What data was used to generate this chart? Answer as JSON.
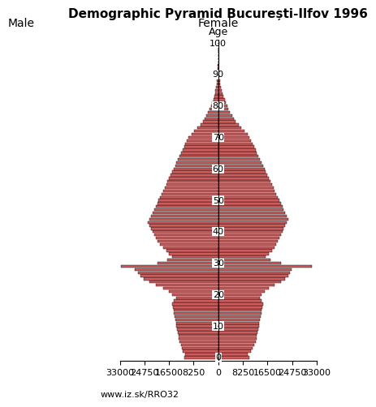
{
  "title": "Demographic Pyramid București-Ilfov 1996",
  "male_label": "Male",
  "female_label": "Female",
  "age_label": "Age",
  "xlim": 33000,
  "website": "www.iz.sk/RRO32",
  "bar_color": "#cd5c5c",
  "bar_edge_color": "#000000",
  "background_color": "#ffffff",
  "title_fontsize": 11,
  "label_fontsize": 10,
  "tick_fontsize": 8,
  "ages": [
    0,
    1,
    2,
    3,
    4,
    5,
    6,
    7,
    8,
    9,
    10,
    11,
    12,
    13,
    14,
    15,
    16,
    17,
    18,
    19,
    20,
    21,
    22,
    23,
    24,
    25,
    26,
    27,
    28,
    29,
    30,
    31,
    32,
    33,
    34,
    35,
    36,
    37,
    38,
    39,
    40,
    41,
    42,
    43,
    44,
    45,
    46,
    47,
    48,
    49,
    50,
    51,
    52,
    53,
    54,
    55,
    56,
    57,
    58,
    59,
    60,
    61,
    62,
    63,
    64,
    65,
    66,
    67,
    68,
    69,
    70,
    71,
    72,
    73,
    74,
    75,
    76,
    77,
    78,
    79,
    80,
    81,
    82,
    83,
    84,
    85,
    86,
    87,
    88,
    89,
    90,
    91,
    92,
    93,
    94,
    95,
    96,
    97,
    98,
    99
  ],
  "male": [
    11500,
    11000,
    11800,
    12200,
    12500,
    13000,
    13200,
    13400,
    13600,
    13800,
    14000,
    14200,
    14400,
    14600,
    14800,
    15000,
    15200,
    15400,
    14800,
    14200,
    15500,
    16500,
    18500,
    21000,
    23000,
    25000,
    26000,
    27000,
    28000,
    32500,
    20500,
    17000,
    15500,
    16500,
    17500,
    18500,
    19500,
    20500,
    21000,
    21500,
    22000,
    22500,
    23000,
    23500,
    23000,
    22500,
    22000,
    21500,
    21000,
    20500,
    20000,
    19500,
    19000,
    18500,
    18000,
    17500,
    17000,
    16500,
    16000,
    15500,
    15000,
    14500,
    14000,
    13500,
    13000,
    12500,
    12000,
    11500,
    11000,
    10500,
    10000,
    9000,
    8000,
    7000,
    6000,
    5000,
    4500,
    4000,
    3500,
    3000,
    2500,
    2000,
    1700,
    1400,
    1100,
    900,
    700,
    500,
    400,
    300,
    200,
    150,
    100,
    70,
    50,
    30,
    20,
    10,
    5,
    2
  ],
  "female": [
    10500,
    10000,
    11000,
    11500,
    12000,
    12500,
    12800,
    13000,
    13200,
    13400,
    13600,
    13800,
    14000,
    14200,
    14400,
    14600,
    14800,
    15000,
    14500,
    14000,
    14500,
    15500,
    17000,
    19000,
    21000,
    22500,
    23500,
    24000,
    24500,
    31500,
    21000,
    17500,
    16000,
    17000,
    18000,
    19000,
    19500,
    20000,
    20500,
    21000,
    21500,
    22000,
    22500,
    23000,
    23500,
    23000,
    22500,
    22000,
    21500,
    21000,
    20500,
    20000,
    19500,
    19000,
    18500,
    18000,
    17500,
    17000,
    16500,
    16000,
    15500,
    15000,
    14500,
    14000,
    13500,
    13000,
    12500,
    12000,
    11500,
    11000,
    10500,
    9800,
    8800,
    7800,
    6800,
    5800,
    5200,
    4600,
    4000,
    3400,
    3000,
    2600,
    2200,
    1800,
    1500,
    1200,
    900,
    700,
    500,
    360,
    250,
    175,
    120,
    80,
    50,
    30,
    15,
    8,
    3,
    1
  ]
}
